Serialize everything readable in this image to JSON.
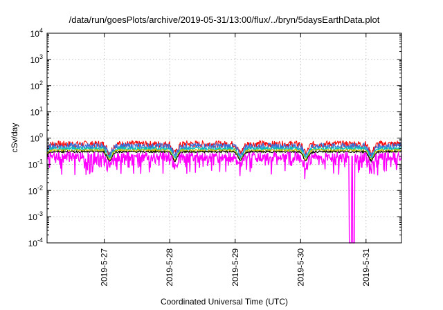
{
  "chart_data": {
    "type": "line",
    "title": "/data/run/goesPlots/archive/2019-05-31/13:00/flux/../bryn/5daysEarthData.plot",
    "xlabel": "Coordinated Universal Time (UTC)",
    "ylabel": "cSv/day",
    "yscale": "log",
    "ylim": [
      0.0001,
      10000
    ],
    "xlim": [
      "2019-05-26 03:00",
      "2019-05-31 13:00"
    ],
    "x_ticks": [
      "2019-5-27",
      "2019-5-28",
      "2019-5-29",
      "2019-5-30",
      "2019-5-31"
    ],
    "y_ticks": [
      {
        "base": "10",
        "exp": "-4",
        "value": 0.0001
      },
      {
        "base": "10",
        "exp": "-3",
        "value": 0.001
      },
      {
        "base": "10",
        "exp": "-2",
        "value": 0.01
      },
      {
        "base": "10",
        "exp": "-1",
        "value": 0.1
      },
      {
        "base": "10",
        "exp": "0",
        "value": 1
      },
      {
        "base": "10",
        "exp": "1",
        "value": 10
      },
      {
        "base": "10",
        "exp": "2",
        "value": 100
      },
      {
        "base": "10",
        "exp": "3",
        "value": 1000
      },
      {
        "base": "10",
        "exp": "4",
        "value": 10000
      }
    ],
    "grid": true,
    "legend": "none",
    "series": [
      {
        "color": "#ff0000",
        "level": 0.6,
        "variation": 0.3
      },
      {
        "color": "#3b6fd8",
        "level": 0.5,
        "variation": 0.28
      },
      {
        "color": "#00c0c0",
        "level": 0.4,
        "variation": 0.15
      },
      {
        "color": "#c0c000",
        "level": 0.34,
        "variation": 0.12
      },
      {
        "color": "#000000",
        "level": 0.3,
        "variation": 0.08
      },
      {
        "color": "#ff00ff",
        "level": 0.2,
        "variation": 0.45,
        "dropout": [
          "2019-05-30 17:30",
          "2019-05-30 20:00"
        ]
      }
    ]
  }
}
